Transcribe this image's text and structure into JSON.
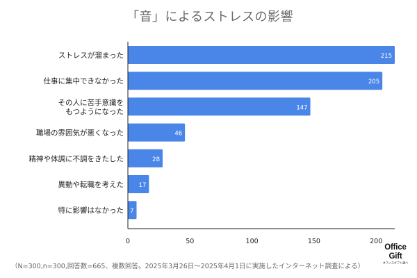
{
  "chart_data": {
    "type": "bar",
    "orientation": "horizontal",
    "title": "「音」によるストレスの影響",
    "categories": [
      "ストレスが溜まった",
      "仕事に集中できなかった",
      "その人に苦手意識を\nもつようになった",
      "職場の雰囲気が悪くなった",
      "精神や体調に不調をきたした",
      "異動や転職を考えた",
      "特に影響はなかった"
    ],
    "values": [
      215,
      205,
      147,
      46,
      28,
      17,
      7
    ],
    "x_ticks": [
      0,
      50,
      100,
      150,
      200
    ],
    "xlim": [
      0,
      215
    ],
    "bar_color": "#4a86e8",
    "label_color": "#ffffff",
    "axis_color": "#222222",
    "grid": false,
    "legend": "none"
  },
  "footnote": "（N=300,n=300,回答数=665、複数回答。2025年3月26日〜2025年4月1日に実施したインターネット調査による）",
  "logo": {
    "line1": "Office",
    "line2": "Gift",
    "line3": "オフィスギフト調べ"
  }
}
